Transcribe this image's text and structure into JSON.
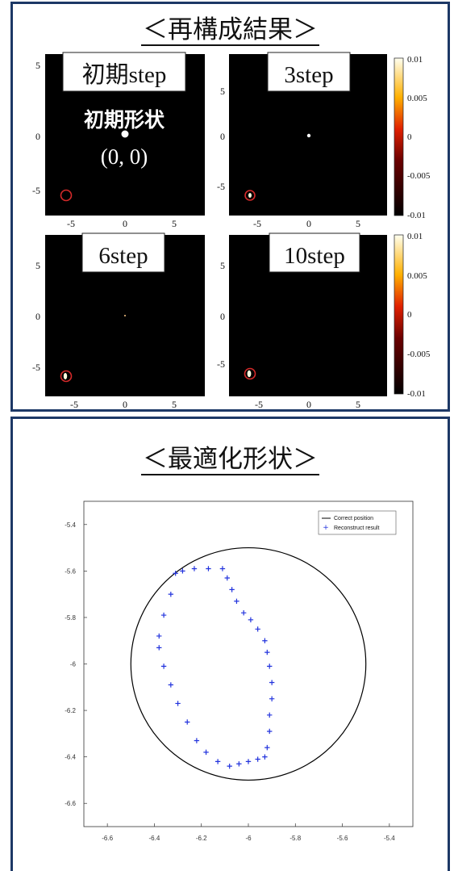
{
  "top_panel": {
    "title": "＜再構成結果＞",
    "subplots": [
      {
        "label": "初期step",
        "annotation": "初期形状",
        "coord": "(0, 0)"
      },
      {
        "label": "3step"
      },
      {
        "label": "6step"
      },
      {
        "label": "10step"
      }
    ],
    "xticks": [
      "-5",
      "0",
      "5"
    ],
    "yticks": [
      "5",
      "0",
      "-5"
    ],
    "colorbar_ticks": [
      "0.01",
      "0.005",
      "0",
      "-0.005",
      "-0.01"
    ],
    "colors": {
      "background": "#000000",
      "marker": "#d42a2a",
      "hot_low": "#000000",
      "hot_mid": "#e02000",
      "hot_high": "#fffff0"
    }
  },
  "bottom_panel": {
    "title": "＜最適化形状＞",
    "xticks": [
      "-6.6",
      "-6.4",
      "-6.2",
      "-6",
      "-5.8",
      "-5.6",
      "-5.4"
    ],
    "yticks": [
      "-5.4",
      "-5.6",
      "-5.8",
      "-6",
      "-6.2",
      "-6.4",
      "-6.6"
    ],
    "legend": [
      "Correct position",
      "Reconstruct result"
    ],
    "colors": {
      "circle": "#000000",
      "reconstruct": "#2233dd"
    }
  },
  "chart_data": {
    "type": "scatter",
    "xlim": [
      -6.7,
      -5.3
    ],
    "ylim": [
      -6.7,
      -5.3
    ],
    "grid": false,
    "legend_position": "top-right",
    "series": [
      {
        "name": "Correct position",
        "kind": "circle",
        "center": [
          -6.0,
          -6.0
        ],
        "radius": 0.5
      },
      {
        "name": "Reconstruct result",
        "kind": "points",
        "x": [
          -6.31,
          -6.28,
          -6.23,
          -6.17,
          -6.11,
          -6.09,
          -6.07,
          -6.05,
          -6.02,
          -5.99,
          -5.96,
          -5.93,
          -5.92,
          -5.91,
          -5.9,
          -5.9,
          -5.91,
          -5.91,
          -5.92,
          -5.93,
          -5.96,
          -6.0,
          -6.04,
          -6.08,
          -6.13,
          -6.18,
          -6.22,
          -6.26,
          -6.3,
          -6.33,
          -6.36,
          -6.38,
          -6.38,
          -6.36,
          -6.33
        ],
        "y": [
          -5.61,
          -5.6,
          -5.59,
          -5.59,
          -5.59,
          -5.63,
          -5.68,
          -5.73,
          -5.78,
          -5.81,
          -5.85,
          -5.9,
          -5.95,
          -6.01,
          -6.08,
          -6.15,
          -6.22,
          -6.29,
          -6.36,
          -6.4,
          -6.41,
          -6.42,
          -6.43,
          -6.44,
          -6.42,
          -6.38,
          -6.33,
          -6.25,
          -6.17,
          -6.09,
          -6.01,
          -5.93,
          -5.88,
          -5.79,
          -5.7
        ]
      }
    ]
  }
}
